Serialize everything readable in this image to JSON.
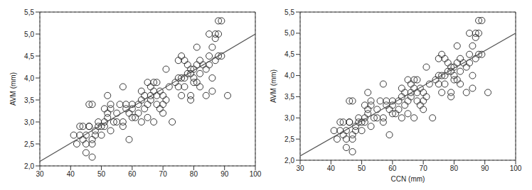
{
  "chart_data": [
    {
      "type": "scatter",
      "y_label": "AVM (mm)",
      "xlim": [
        30,
        100
      ],
      "xticks": [
        30,
        40,
        50,
        60,
        70,
        80,
        90,
        100
      ],
      "ylim": [
        2.0,
        5.5
      ],
      "yticks": [
        {
          "value": 2.0,
          "label": "2,0"
        },
        {
          "value": 2.5,
          "label": "2,5"
        },
        {
          "value": 3.0,
          "label": "3,0"
        },
        {
          "value": 3.5,
          "label": "3,5"
        },
        {
          "value": 4.0,
          "label": "4,0"
        },
        {
          "value": 4.5,
          "label": "4,5"
        },
        {
          "value": 5.0,
          "label": "5,0"
        },
        {
          "value": 5.5,
          "label": "5,5"
        }
      ],
      "grid": true,
      "series": [
        {
          "type": "scatter",
          "marker": "circle",
          "color": "#222222",
          "x": [
            41,
            42,
            43,
            43,
            44,
            44,
            45,
            45,
            45,
            46,
            46,
            46,
            47,
            47,
            47,
            47,
            48,
            48,
            49,
            49,
            50,
            50,
            51,
            51,
            51,
            52,
            52,
            52,
            53,
            53,
            53,
            54,
            55,
            55,
            56,
            57,
            57,
            57,
            58,
            58,
            59,
            59,
            60,
            60,
            60,
            61,
            62,
            62,
            63,
            63,
            63,
            64,
            64,
            65,
            65,
            65,
            66,
            66,
            66,
            67,
            67,
            67,
            68,
            68,
            68,
            69,
            69,
            70,
            70,
            70,
            71,
            71,
            72,
            73,
            74,
            75,
            75,
            75,
            76,
            76,
            76,
            77,
            77,
            77,
            78,
            78,
            79,
            79,
            79,
            79,
            80,
            80,
            80,
            81,
            81,
            81,
            82,
            82,
            82,
            83,
            84,
            84,
            85,
            85,
            85,
            86,
            86,
            86,
            87,
            87,
            87,
            88,
            88,
            88,
            89,
            89,
            91
          ],
          "values": [
            2.7,
            2.5,
            2.7,
            2.9,
            2.9,
            2.6,
            2.5,
            2.3,
            2.7,
            2.9,
            2.9,
            3.4,
            3.4,
            2.5,
            2.2,
            2.6,
            2.7,
            2.8,
            2.9,
            3.0,
            2.7,
            2.9,
            3.3,
            3.0,
            2.9,
            3.6,
            3.2,
            3.1,
            3.3,
            2.8,
            3.4,
            3.0,
            3.2,
            3.0,
            3.4,
            3.8,
            3.0,
            2.9,
            3.3,
            3.4,
            3.2,
            2.6,
            3.3,
            3.4,
            3.1,
            3.1,
            3.4,
            3.2,
            3.5,
            3.7,
            3.0,
            3.6,
            3.3,
            3.4,
            3.9,
            3.1,
            3.6,
            3.8,
            3.5,
            3.9,
            3.7,
            3.0,
            3.9,
            3.6,
            3.4,
            3.7,
            3.3,
            3.6,
            3.4,
            3.2,
            4.2,
            3.5,
            3.8,
            3.0,
            3.9,
            4.0,
            3.8,
            4.4,
            4.5,
            4.0,
            3.6,
            4.4,
            4.0,
            3.8,
            4.3,
            4.1,
            4.2,
            3.6,
            3.5,
            4.1,
            4.2,
            4.0,
            3.9,
            4.7,
            4.3,
            3.9,
            4.4,
            4.1,
            3.8,
            4.3,
            4.2,
            3.6,
            5.0,
            4.5,
            4.3,
            4.7,
            4.0,
            3.7,
            5.0,
            4.9,
            4.4,
            5.0,
            4.5,
            5.3,
            5.3,
            4.5,
            3.6
          ]
        },
        {
          "type": "line",
          "line_style": "solid",
          "color": "#555555",
          "x": [
            30,
            100
          ],
          "values": [
            2.1,
            5.0
          ]
        }
      ]
    },
    {
      "type": "scatter",
      "x_label": "CCN (mm)",
      "y_label": "AVM (mm)",
      "xlim": [
        30,
        100
      ],
      "xticks": [
        30,
        40,
        50,
        60,
        70,
        80,
        90,
        100
      ],
      "ylim": [
        2.0,
        5.5
      ],
      "yticks": [
        {
          "value": 2.0,
          "label": "2,0"
        },
        {
          "value": 2.5,
          "label": "2,5"
        },
        {
          "value": 3.0,
          "label": "3,0"
        },
        {
          "value": 3.5,
          "label": "3,5"
        },
        {
          "value": 4.0,
          "label": "4,0"
        },
        {
          "value": 4.5,
          "label": "4,5"
        },
        {
          "value": 5.0,
          "label": "5,0"
        },
        {
          "value": 5.5,
          "label": "5,5"
        }
      ],
      "grid": true,
      "series": [
        {
          "type": "scatter",
          "marker": "circle",
          "color": "#222222",
          "x": [
            41,
            42,
            43,
            43,
            44,
            44,
            45,
            45,
            45,
            46,
            46,
            46,
            47,
            47,
            47,
            47,
            48,
            48,
            49,
            49,
            50,
            50,
            51,
            51,
            51,
            52,
            52,
            52,
            53,
            53,
            53,
            54,
            55,
            55,
            56,
            57,
            57,
            57,
            58,
            58,
            59,
            59,
            60,
            60,
            60,
            61,
            62,
            62,
            63,
            63,
            63,
            64,
            64,
            65,
            65,
            65,
            66,
            66,
            66,
            67,
            67,
            67,
            68,
            68,
            68,
            69,
            69,
            70,
            70,
            70,
            71,
            71,
            72,
            73,
            74,
            75,
            75,
            75,
            76,
            76,
            76,
            77,
            77,
            77,
            78,
            78,
            79,
            79,
            79,
            79,
            80,
            80,
            80,
            81,
            81,
            81,
            82,
            82,
            82,
            83,
            84,
            84,
            85,
            85,
            85,
            86,
            86,
            86,
            87,
            87,
            87,
            88,
            88,
            88,
            89,
            89,
            91
          ],
          "values": [
            2.7,
            2.5,
            2.7,
            2.9,
            2.9,
            2.6,
            2.5,
            2.3,
            2.7,
            2.9,
            2.9,
            3.4,
            3.4,
            2.5,
            2.2,
            2.6,
            2.7,
            2.8,
            2.9,
            3.0,
            2.7,
            2.9,
            3.3,
            3.0,
            2.9,
            3.6,
            3.2,
            3.1,
            3.3,
            2.8,
            3.4,
            3.0,
            3.2,
            3.0,
            3.4,
            3.8,
            3.0,
            2.9,
            3.3,
            3.4,
            3.2,
            2.6,
            3.3,
            3.4,
            3.1,
            3.1,
            3.4,
            3.2,
            3.5,
            3.7,
            3.0,
            3.6,
            3.3,
            3.4,
            3.9,
            3.1,
            3.6,
            3.8,
            3.5,
            3.9,
            3.7,
            3.0,
            3.9,
            3.6,
            3.4,
            3.7,
            3.3,
            3.6,
            3.4,
            3.2,
            4.2,
            3.5,
            3.8,
            3.0,
            3.9,
            4.0,
            3.8,
            4.4,
            4.5,
            4.0,
            3.6,
            4.4,
            4.0,
            3.8,
            4.3,
            4.1,
            4.2,
            3.6,
            3.5,
            4.1,
            4.2,
            4.0,
            3.9,
            4.7,
            4.3,
            3.9,
            4.4,
            4.1,
            3.8,
            4.3,
            4.2,
            3.6,
            5.0,
            4.5,
            4.3,
            4.7,
            4.0,
            3.7,
            5.0,
            4.9,
            4.4,
            5.0,
            4.5,
            5.3,
            5.3,
            4.5,
            3.6
          ]
        },
        {
          "type": "line",
          "line_style": "solid",
          "color": "#555555",
          "x": [
            30,
            100
          ],
          "values": [
            2.1,
            5.0
          ]
        }
      ]
    }
  ]
}
